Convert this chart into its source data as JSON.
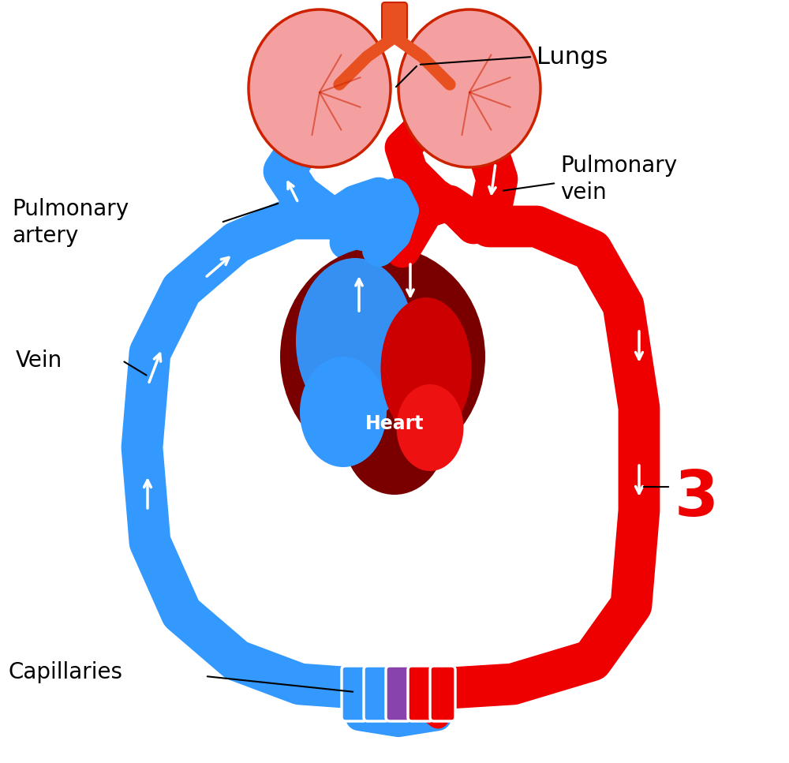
{
  "bg_color": "#ffffff",
  "red": "#EE0000",
  "dark_red": "#7A0000",
  "blue": "#3399FF",
  "blue_dark": "#2277DD",
  "pink_lung": "#F5A0A0",
  "lung_border": "#CC2200",
  "orange_red": "#E85020",
  "purple": "#8844AA",
  "white": "#ffffff",
  "black": "#000000",
  "vessel_lw": 38,
  "vessel_lw_med": 28,
  "label_fontsize": 20,
  "heart_label_fontsize": 17,
  "number_fontsize": 58,
  "fig_w": 10.0,
  "fig_h": 9.67,
  "xlim": [
    0,
    10
  ],
  "ylim": [
    0,
    9.67
  ]
}
